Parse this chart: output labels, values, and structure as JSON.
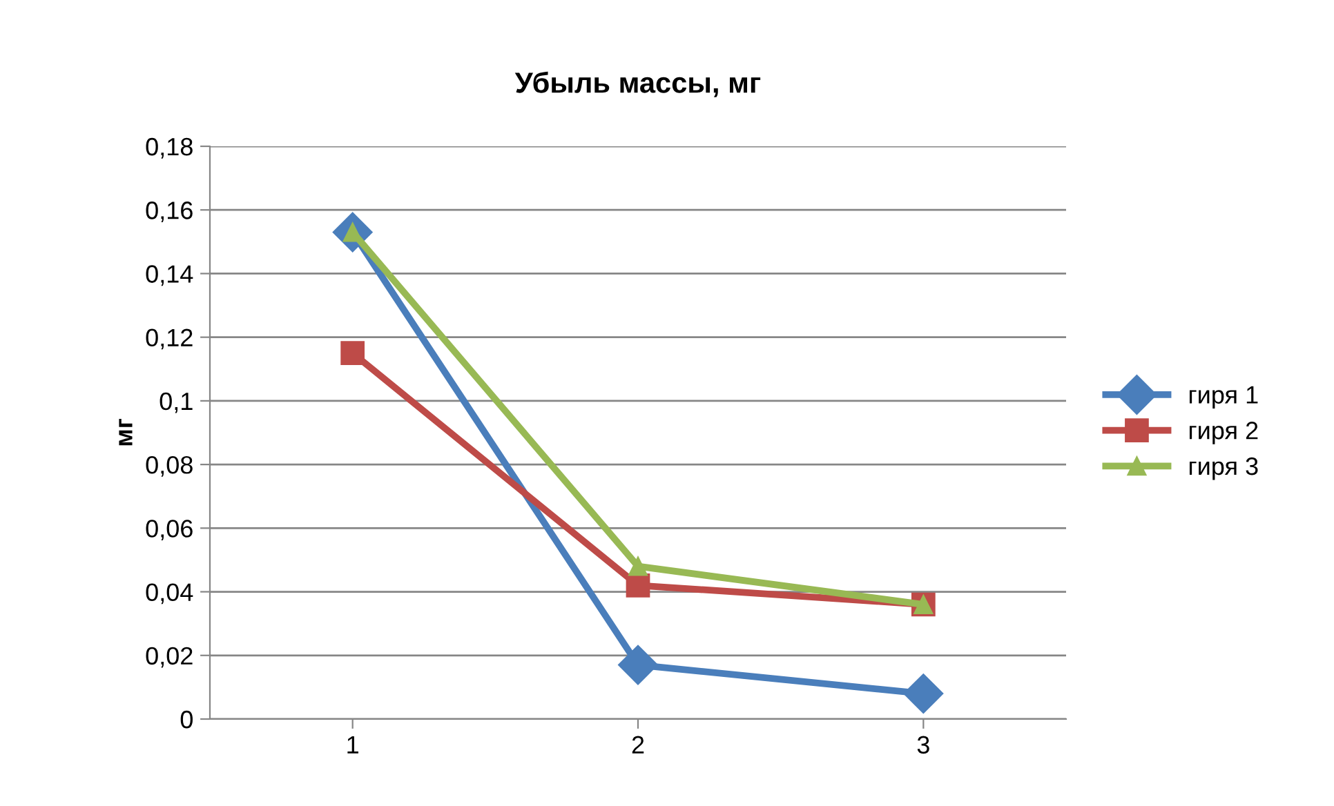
{
  "chart_data": {
    "type": "line",
    "title": "Убыль массы, мг",
    "ylabel": "мг",
    "categories": [
      "1",
      "2",
      "3"
    ],
    "series": [
      {
        "name": "гиря 1",
        "color": "#4a7ebb",
        "marker": "diamond",
        "values": [
          0.153,
          0.017,
          0.008
        ]
      },
      {
        "name": "гиря 2",
        "color": "#be4b48",
        "marker": "square",
        "values": [
          0.115,
          0.042,
          0.036
        ]
      },
      {
        "name": "гиря 3",
        "color": "#98b954",
        "marker": "triangle",
        "values": [
          0.153,
          0.048,
          0.036
        ]
      }
    ],
    "ylim": [
      0,
      0.18
    ],
    "yticks": [
      0,
      {
        "value": 0.02,
        "label": "0,02"
      },
      {
        "value": 0.04,
        "label": "0,04"
      },
      {
        "value": 0.06,
        "label": "0,06"
      },
      {
        "value": 0.08,
        "label": "0,08"
      },
      {
        "value": 0.1,
        "label": "0,1"
      },
      {
        "value": 0.12,
        "label": "0,12"
      },
      {
        "value": 0.14,
        "label": "0,14"
      },
      {
        "value": 0.16,
        "label": "0,16"
      },
      {
        "value": 0.18,
        "label": "0,18"
      }
    ],
    "grid": "y",
    "legend": "right",
    "line_style": "solid"
  }
}
